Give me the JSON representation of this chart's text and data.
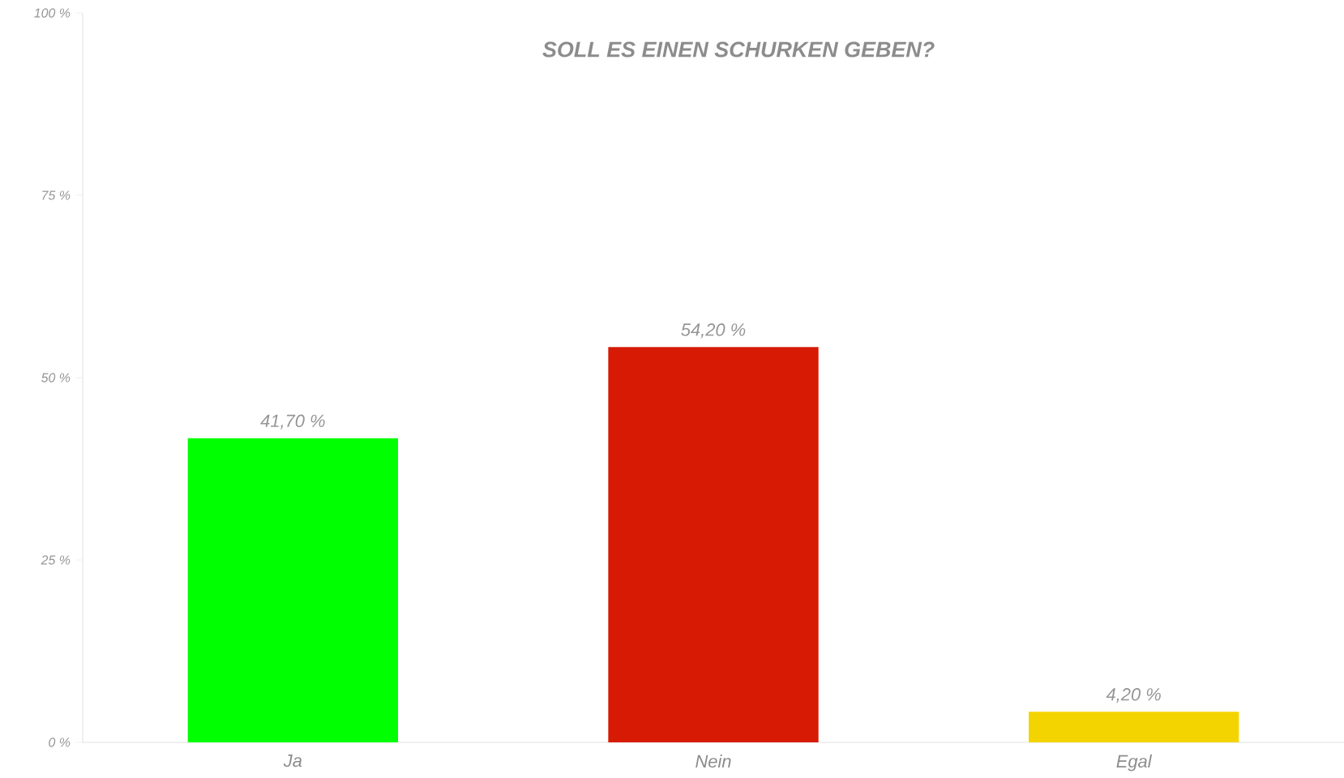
{
  "chart_data": {
    "type": "bar",
    "title": "SOLL ES EINEN SCHURKEN GEBEN?",
    "categories": [
      "Ja",
      "Nein",
      "Egal"
    ],
    "values": [
      41.7,
      54.2,
      4.2
    ],
    "colors": [
      "#00ff00",
      "#d61a04",
      "#f4d400"
    ],
    "value_labels": [
      "41,70 %",
      "54,20 %",
      "4,20 %"
    ],
    "ylim": [
      0,
      100
    ],
    "yticks": [
      {
        "value": 0,
        "label": "0 %"
      },
      {
        "value": 25,
        "label": "25 %"
      },
      {
        "value": 50,
        "label": "50 %"
      },
      {
        "value": 75,
        "label": "75 %"
      },
      {
        "value": 100,
        "label": "100 %"
      }
    ],
    "grid": false
  }
}
